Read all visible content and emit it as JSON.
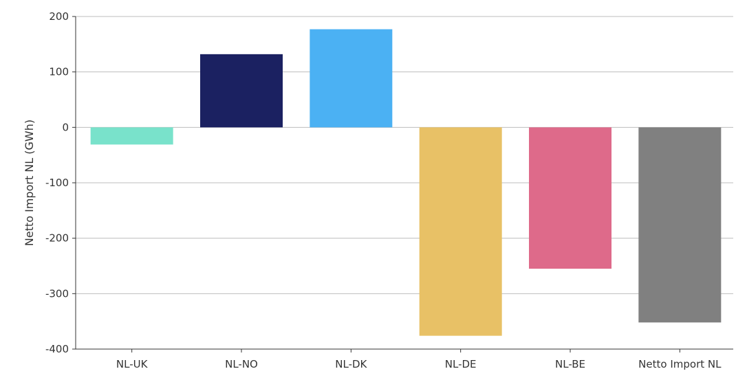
{
  "chart_data": {
    "type": "bar",
    "title": "",
    "xlabel": "",
    "ylabel": "Netto Import NL (GWh)",
    "categories": [
      "NL-UK",
      "NL-NO",
      "NL-DK",
      "NL-DE",
      "NL-BE",
      "Netto Import NL"
    ],
    "values": [
      -31,
      132,
      177,
      -376,
      -255,
      -352
    ],
    "colors": [
      "#79e2cb",
      "#1b2161",
      "#4bb1f3",
      "#e8c166",
      "#de6a8a",
      "#808080"
    ],
    "ylim": [
      -400,
      200
    ],
    "yticks": [
      -400,
      -300,
      -200,
      -100,
      0,
      100,
      200
    ],
    "ytick_labels": [
      "-400",
      "-300",
      "-200",
      "-100",
      "0",
      "100",
      "200"
    ],
    "grid": "horizontal",
    "legend": "none"
  }
}
